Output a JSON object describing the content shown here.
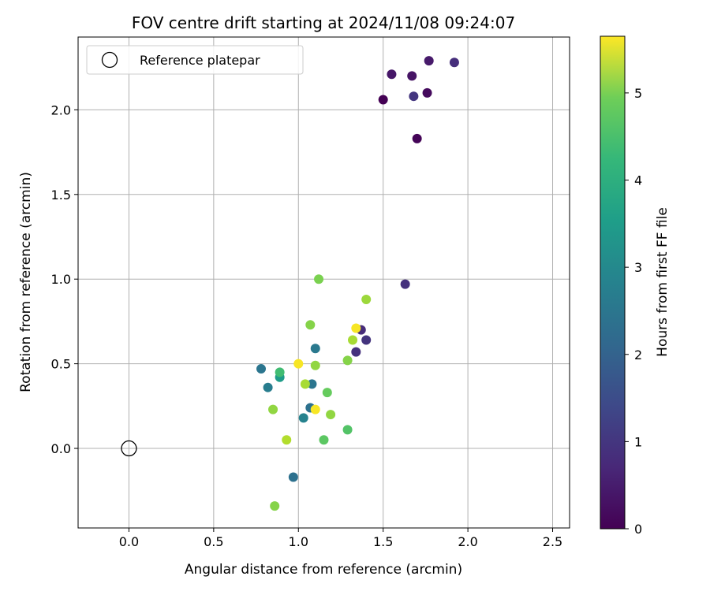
{
  "chart_data": {
    "type": "scatter",
    "title": "FOV centre drift starting at 2024/11/08 09:24:07",
    "xlabel": "Angular distance from reference (arcmin)",
    "ylabel": "Rotation from reference (arcmin)",
    "xlim": [
      -0.3,
      2.6
    ],
    "ylim": [
      -0.47,
      2.43
    ],
    "xticks": [
      "0.0",
      "0.5",
      "1.0",
      "1.5",
      "2.0",
      "2.5"
    ],
    "yticks": [
      "0.0",
      "0.5",
      "1.0",
      "1.5",
      "2.0"
    ],
    "grid": true,
    "legend": {
      "placement": "top-left",
      "entries": [
        "Reference platepar"
      ]
    },
    "reference_point": {
      "x": 0.0,
      "y": 0.0
    },
    "colorbar": {
      "label": "Hours from first FF file",
      "range": [
        0,
        5.65
      ],
      "ticks": [
        "0",
        "1",
        "2",
        "3",
        "4",
        "5"
      ],
      "colormap": "viridis"
    },
    "points": [
      {
        "x": 1.5,
        "y": 2.06,
        "c": 0.0
      },
      {
        "x": 1.7,
        "y": 1.83,
        "c": 0.05
      },
      {
        "x": 1.76,
        "y": 2.1,
        "c": 0.15
      },
      {
        "x": 1.67,
        "y": 2.2,
        "c": 0.3
      },
      {
        "x": 1.55,
        "y": 2.21,
        "c": 0.35
      },
      {
        "x": 1.77,
        "y": 2.29,
        "c": 0.4
      },
      {
        "x": 1.92,
        "y": 2.28,
        "c": 0.75
      },
      {
        "x": 1.68,
        "y": 2.08,
        "c": 0.9
      },
      {
        "x": 1.63,
        "y": 0.97,
        "c": 0.8
      },
      {
        "x": 1.4,
        "y": 0.64,
        "c": 0.85
      },
      {
        "x": 1.34,
        "y": 0.57,
        "c": 0.8
      },
      {
        "x": 1.37,
        "y": 0.7,
        "c": 0.7
      },
      {
        "x": 0.97,
        "y": -0.17,
        "c": 2.1
      },
      {
        "x": 0.78,
        "y": 0.47,
        "c": 2.2
      },
      {
        "x": 0.82,
        "y": 0.36,
        "c": 2.4
      },
      {
        "x": 1.1,
        "y": 0.59,
        "c": 2.3
      },
      {
        "x": 1.08,
        "y": 0.38,
        "c": 2.2
      },
      {
        "x": 1.07,
        "y": 0.24,
        "c": 2.1
      },
      {
        "x": 1.03,
        "y": 0.18,
        "c": 2.5
      },
      {
        "x": 0.89,
        "y": 0.42,
        "c": 3.1
      },
      {
        "x": 0.89,
        "y": 0.45,
        "c": 3.9
      },
      {
        "x": 1.17,
        "y": 0.33,
        "c": 4.3
      },
      {
        "x": 1.15,
        "y": 0.05,
        "c": 4.2
      },
      {
        "x": 1.29,
        "y": 0.11,
        "c": 4.1
      },
      {
        "x": 1.29,
        "y": 0.52,
        "c": 4.6
      },
      {
        "x": 1.12,
        "y": 1.0,
        "c": 4.5
      },
      {
        "x": 1.07,
        "y": 0.73,
        "c": 4.6
      },
      {
        "x": 1.19,
        "y": 0.2,
        "c": 4.7
      },
      {
        "x": 0.85,
        "y": 0.23,
        "c": 4.7
      },
      {
        "x": 0.86,
        "y": -0.34,
        "c": 4.6
      },
      {
        "x": 1.1,
        "y": 0.49,
        "c": 4.7
      },
      {
        "x": 1.4,
        "y": 0.88,
        "c": 4.8
      },
      {
        "x": 1.32,
        "y": 0.64,
        "c": 4.9
      },
      {
        "x": 1.04,
        "y": 0.38,
        "c": 4.9
      },
      {
        "x": 0.93,
        "y": 0.05,
        "c": 5.0
      },
      {
        "x": 1.0,
        "y": 0.5,
        "c": 5.6
      },
      {
        "x": 1.34,
        "y": 0.71,
        "c": 5.6
      },
      {
        "x": 1.1,
        "y": 0.23,
        "c": 5.6
      }
    ]
  }
}
